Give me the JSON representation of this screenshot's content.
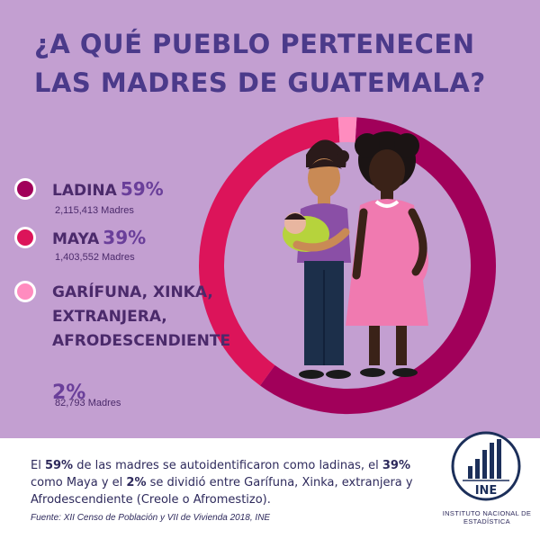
{
  "title": "¿A QUÉ PUEBLO PERTENECEN LAS MADRES DE GUATEMALA?",
  "colors": {
    "ladina": "#a1005a",
    "maya": "#dc145a",
    "garifuna": "#ff8cbf",
    "background": "#c39fd1",
    "title": "#4b3a8a"
  },
  "chart_data": {
    "type": "pie",
    "title": "¿A QUÉ PUEBLO PERTENECEN LAS MADRES DE GUATEMALA?",
    "categories": [
      "Ladina",
      "Maya",
      "Garífuna, Xinka, Extranjera, Afrodescendiente"
    ],
    "values": [
      59,
      39,
      2
    ],
    "counts": [
      "2,115,413 Madres",
      "1,403,552 Madres",
      "82,793 Madres"
    ],
    "unit": "%"
  },
  "legend": [
    {
      "label": "LADINA",
      "percent": "59%",
      "count": "2,115,413 Madres"
    },
    {
      "label": "MAYA",
      "percent": "39%",
      "count": "1,403,552 Madres"
    },
    {
      "label": "GARÍFUNA, XINKA, EXTRANJERA, AFRODESCENDIENTE",
      "percent": "2%",
      "count": "82,793 Madres"
    }
  ],
  "summary": {
    "p1": "El ",
    "b1": "59%",
    "p2": " de las madres se autoidentificaron como ladinas, el ",
    "b2": "39%",
    "p3": " como Maya y el ",
    "b3": "2%",
    "p4": " se dividió entre Garífuna, Xinka, extranjera y Afrodescendiente (Creole o Afromestizo)."
  },
  "source": "Fuente: XII Censo de Población y VII de Vivienda 2018, INE",
  "logo": {
    "text": "INE",
    "caption": "INSTITUTO NACIONAL DE ESTADÍSTICA"
  }
}
